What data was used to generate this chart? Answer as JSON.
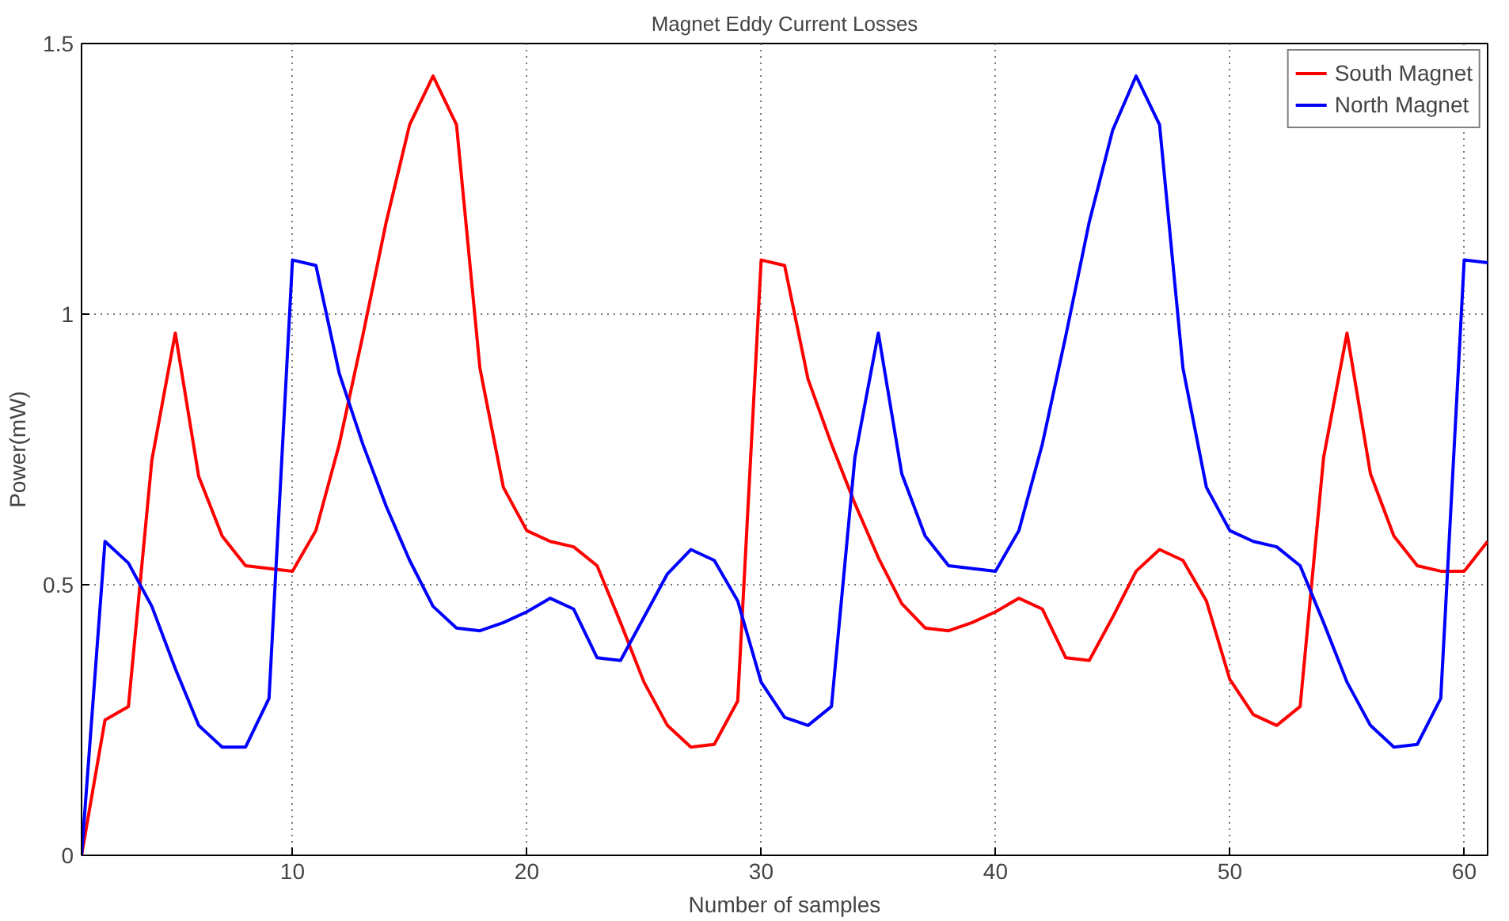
{
  "chart_data": {
    "type": "line",
    "title": "Magnet Eddy Current Losses",
    "xlabel": "Number of samples",
    "ylabel": "Power(mW)",
    "x": [
      1,
      2,
      3,
      4,
      5,
      6,
      7,
      8,
      9,
      10,
      11,
      12,
      13,
      14,
      15,
      16,
      17,
      18,
      19,
      20,
      21,
      22,
      23,
      24,
      25,
      26,
      27,
      28,
      29,
      30,
      31,
      32,
      33,
      34,
      35,
      36,
      37,
      38,
      39,
      40,
      41,
      42,
      43,
      44,
      45,
      46,
      47,
      48,
      49,
      50,
      51,
      52,
      53,
      54,
      55,
      56,
      57,
      58,
      59,
      60,
      61
    ],
    "series": [
      {
        "name": "South Magnet",
        "color": "#ff0000",
        "values": [
          0,
          0.25,
          0.275,
          0.73,
          0.965,
          0.7,
          0.59,
          0.535,
          0.53,
          0.525,
          0.6,
          0.76,
          0.96,
          1.17,
          1.35,
          1.44,
          1.35,
          0.9,
          0.68,
          0.6,
          0.58,
          0.57,
          0.535,
          0.43,
          0.32,
          0.24,
          0.2,
          0.205,
          0.285,
          1.1,
          1.09,
          0.88,
          0.76,
          0.65,
          0.55,
          0.465,
          0.42,
          0.415,
          0.43,
          0.45,
          0.475,
          0.455,
          0.365,
          0.36,
          0.44,
          0.525,
          0.565,
          0.545,
          0.47,
          0.325,
          0.26,
          0.24,
          0.275,
          0.735,
          0.965,
          0.705,
          0.59,
          0.535,
          0.525,
          0.525,
          0.58
        ]
      },
      {
        "name": "North Magnet",
        "color": "#0000ff",
        "values": [
          0,
          0.58,
          0.54,
          0.46,
          0.345,
          0.24,
          0.2,
          0.2,
          0.29,
          1.1,
          1.09,
          0.89,
          0.76,
          0.645,
          0.545,
          0.46,
          0.42,
          0.415,
          0.43,
          0.45,
          0.475,
          0.455,
          0.365,
          0.36,
          0.44,
          0.52,
          0.565,
          0.545,
          0.47,
          0.32,
          0.255,
          0.24,
          0.275,
          0.735,
          0.965,
          0.705,
          0.59,
          0.535,
          0.53,
          0.525,
          0.6,
          0.76,
          0.96,
          1.17,
          1.34,
          1.44,
          1.35,
          0.9,
          0.68,
          0.6,
          0.58,
          0.57,
          0.535,
          0.43,
          0.32,
          0.24,
          0.2,
          0.205,
          0.29,
          1.1,
          1.095
        ]
      }
    ],
    "xlim": [
      1,
      61
    ],
    "ylim": [
      0,
      1.5
    ],
    "xticks": [
      10,
      20,
      30,
      40,
      50,
      60
    ],
    "yticks": [
      0,
      0.5,
      1,
      1.5
    ],
    "grid": true,
    "legend": "top right",
    "line_style": "solid",
    "marker": "none"
  }
}
